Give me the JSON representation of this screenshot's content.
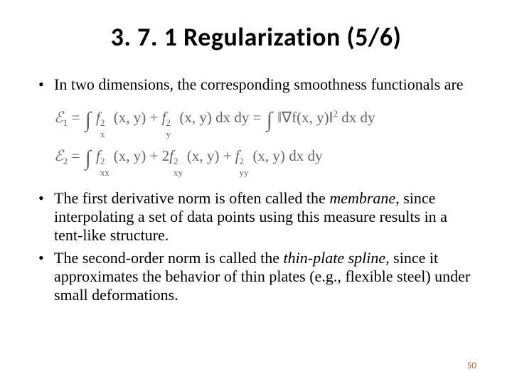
{
  "title": "3. 7. 1 Regularization (5/6)",
  "bullets": {
    "b1": "In two dimensions, the corresponding smoothness functionals are",
    "b2_pre": "The first derivative norm is often called the ",
    "b2_em": "membrane",
    "b2_post": ", since interpolating a set of data points using this measure results in a tent-like structure.",
    "b3_pre": "The second-order norm is called the ",
    "b3_em": "thin-plate spline",
    "b3_post": ", since it approximates the behavior of thin plates (e.g., flexible steel) under small deformations."
  },
  "equations": {
    "e1_label": "ℰ",
    "e1_sub": "1",
    "e1_lhs_a": " = ",
    "e1_term1_f": "f",
    "e1_args": "(x, y)",
    "e1_plus": " + ",
    "e1_dxdy": " dx dy",
    "e1_eq2": " = ",
    "e1_grad": "‖∇f(x, y)‖",
    "e1_sq": "2",
    "e2_sub": "2",
    "e2_coef": "2",
    "sub_x": "x",
    "sub_y": "y",
    "sub_xx": "xx",
    "sub_xy": "xy",
    "sub_yy": "yy",
    "sup_2": "2"
  },
  "page_number": "50",
  "colors": {
    "text": "#000000",
    "eq": "#666666",
    "pagenum": "#9a6b3a",
    "bg": "#ffffff"
  },
  "fonts": {
    "title_family": "Calibri",
    "title_size_pt": 28,
    "body_family": "Times New Roman",
    "body_size_pt": 18
  }
}
